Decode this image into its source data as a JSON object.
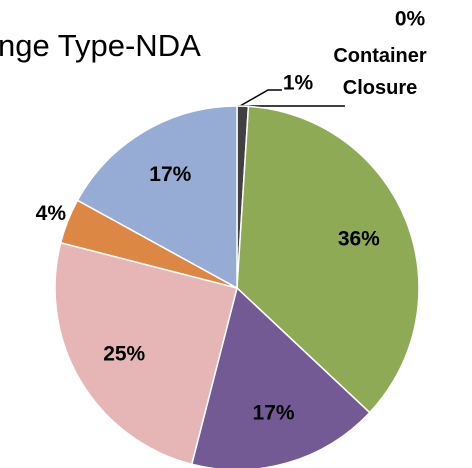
{
  "chart_data": {
    "type": "pie",
    "title": "nge Type-NDA",
    "categories": [
      "Container Closure",
      null,
      null,
      null,
      null,
      null,
      null
    ],
    "values": [
      0,
      1,
      36,
      17,
      25,
      4,
      17
    ],
    "value_labels": [
      "0%",
      "1%",
      "36%",
      "17%",
      "25%",
      "4%",
      "17%"
    ],
    "colors": [
      "#4f81bd",
      "#404040",
      "#8faa55",
      "#735a94",
      "#e6b6b6",
      "#dd8744",
      "#96acd4"
    ]
  }
}
